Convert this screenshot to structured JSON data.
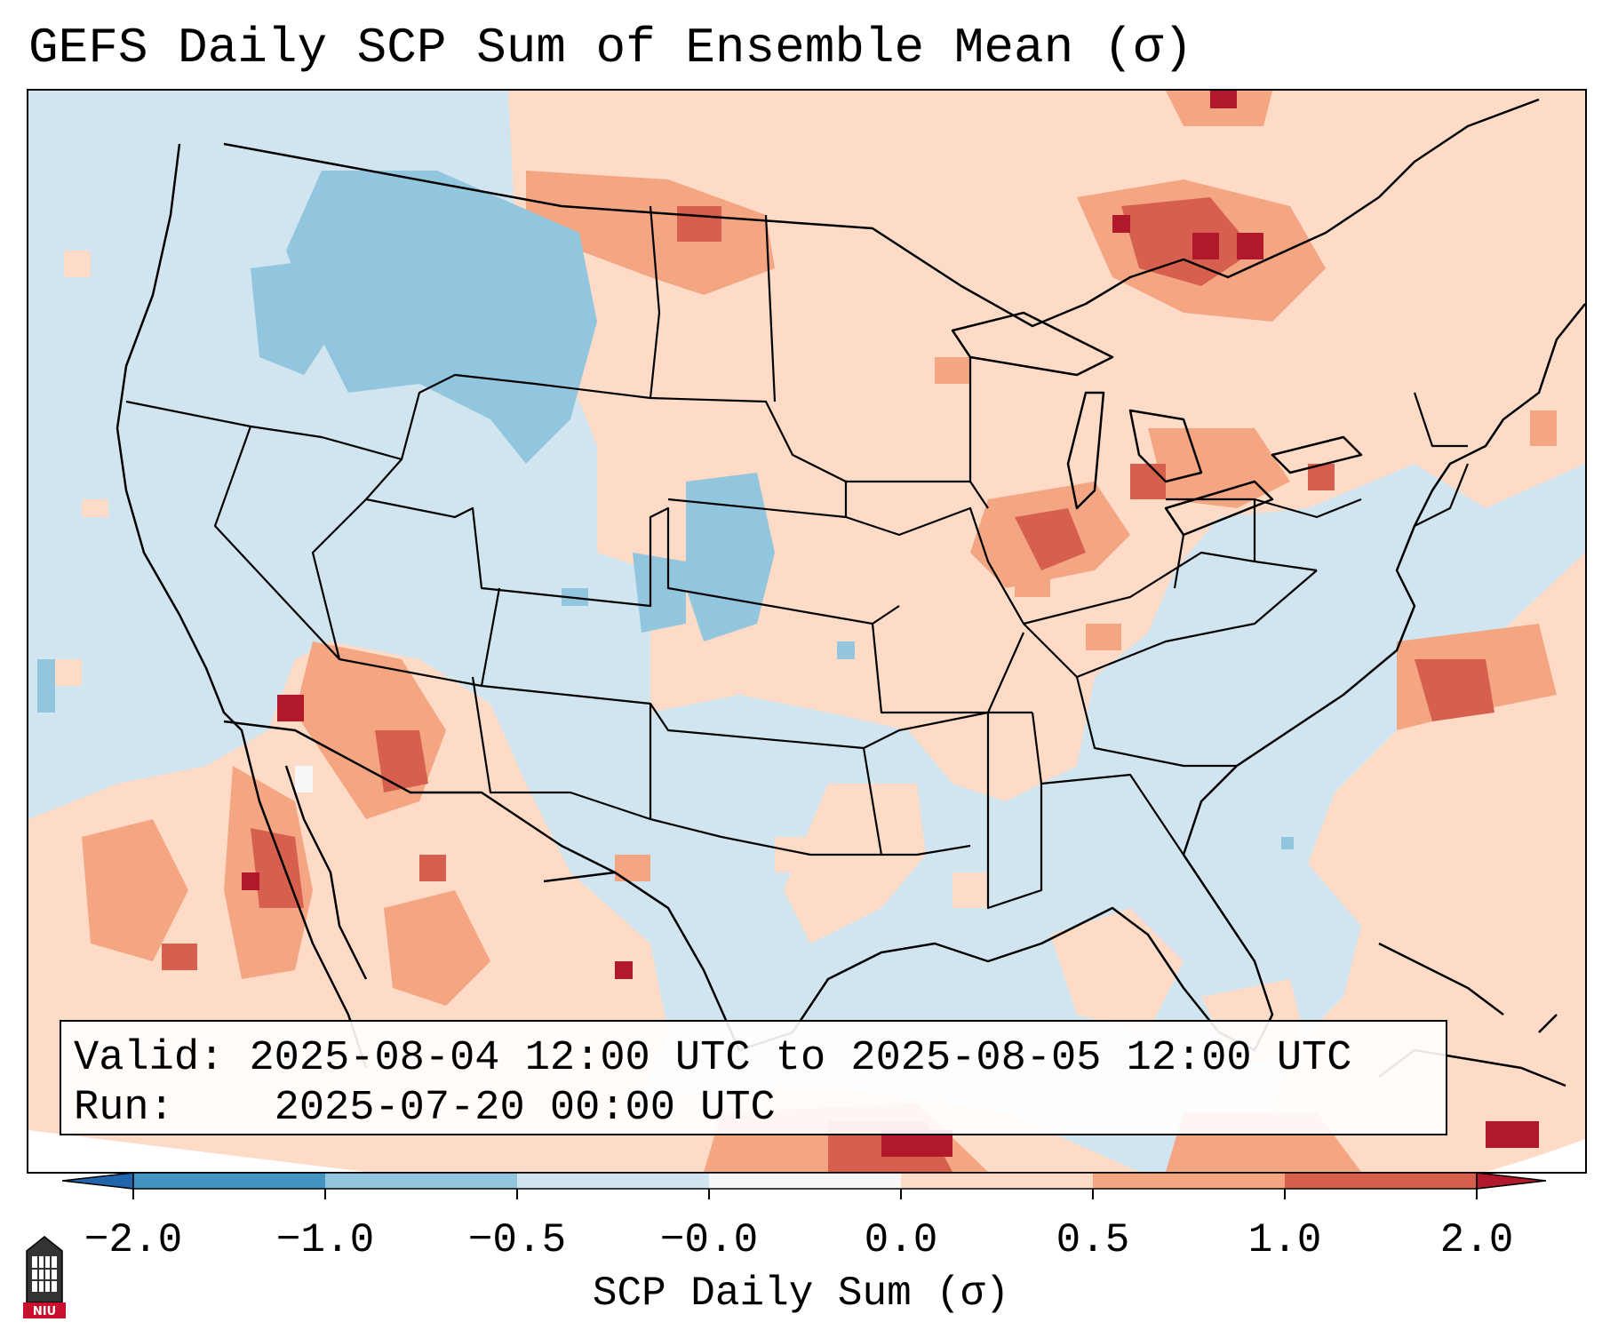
{
  "title": "GEFS Daily SCP Sum of Ensemble Mean (σ)",
  "info": {
    "valid_label": "Valid:",
    "valid_value": "2025-08-04 12:00 UTC to 2025-08-05 12:00 UTC",
    "run_label": "Run:",
    "run_value": "2025-07-20 00:00 UTC"
  },
  "colorbar": {
    "label": "SCP Daily Sum (σ)",
    "ticks": [
      "−2.0",
      "−1.0",
      "−0.5",
      "−0.0",
      "0.0",
      "0.5",
      "1.0",
      "2.0"
    ],
    "colors": [
      "#4393c3",
      "#92c5de",
      "#d1e5f0",
      "#f7f7f7",
      "#fddbc7",
      "#f4a582",
      "#d6604d"
    ],
    "under_color": "#2166ac",
    "over_color": "#b2182b"
  },
  "logo": {
    "text": "NIU"
  },
  "colors": {
    "background_field": "#d1e5f0",
    "positive_light": "#fddbc7",
    "positive_mid": "#f4a582",
    "positive_strong": "#d6604d",
    "positive_max": "#b2182b",
    "negative_light": "#d1e5f0",
    "negative_mid": "#92c5de"
  }
}
